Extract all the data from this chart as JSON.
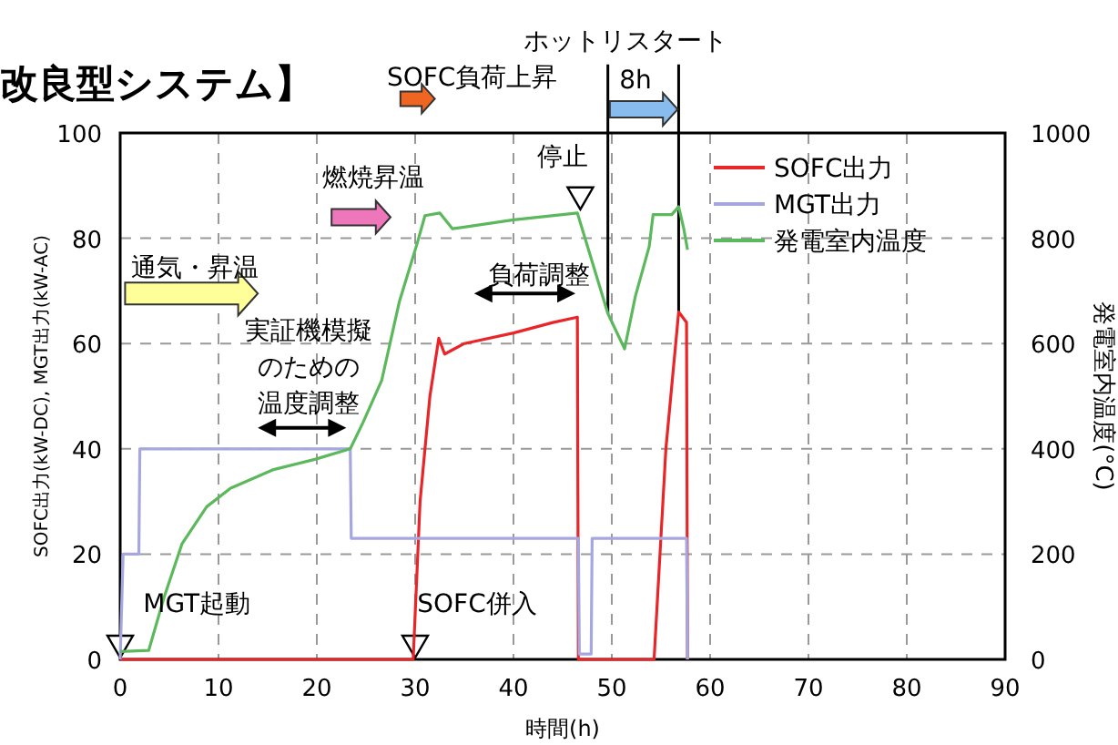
{
  "chart_data": {
    "type": "line",
    "title": "改良型システム】",
    "xlabel": "時間(h)",
    "ylabel": "SOFC出力(kW-DC), MGT出力(kW-AC)",
    "y2label": "発電室内温度(°C)",
    "xlim": [
      0,
      90
    ],
    "xticks": [
      0,
      10,
      20,
      30,
      40,
      50,
      60,
      70,
      80,
      90
    ],
    "ylim": [
      0,
      100
    ],
    "yticks": [
      0,
      20,
      40,
      60,
      80,
      100
    ],
    "y2lim": [
      0,
      1000
    ],
    "y2ticks": [
      0,
      200,
      400,
      600,
      800,
      1000
    ],
    "grid": true,
    "legend": "top right",
    "series": [
      {
        "name": "SOFC出力",
        "color": "#e8262a",
        "x": [
          0,
          29.8,
          30.5,
          31.5,
          32.4,
          33,
          35,
          40,
          44,
          46.5,
          46.6,
          54.3,
          55.5,
          56.8,
          57.6,
          57.7
        ],
        "values": [
          0,
          0,
          30,
          50,
          61,
          58,
          60,
          62,
          64,
          65,
          0,
          0,
          40,
          66,
          64,
          0
        ]
      },
      {
        "name": "MGT出力",
        "color": "#a6a6e0",
        "x": [
          0,
          0.3,
          1.9,
          2,
          23.4,
          23.5,
          46.6,
          46.7,
          47.9,
          48,
          57.6,
          57.7
        ],
        "values": [
          0,
          20,
          20,
          40,
          40,
          23,
          23,
          1,
          1,
          23,
          23,
          0
        ]
      },
      {
        "name": "発電室内温度",
        "color": "#5cb85c",
        "axis": "y2",
        "x": [
          0,
          2.9,
          4.5,
          6.3,
          8.8,
          11.2,
          15.5,
          19.8,
          23.4,
          24.7,
          26.6,
          28.4,
          30.2,
          31,
          32.5,
          33.8,
          40,
          46.5,
          49.6,
          51.3,
          52.4,
          53.8,
          54.2,
          56.1,
          56.8,
          57.3,
          57.7
        ],
        "values": [
          15,
          17,
          120,
          220,
          290,
          325,
          360,
          380,
          400,
          450,
          530,
          680,
          790,
          843,
          848,
          818,
          835,
          848,
          657,
          590,
          690,
          784,
          845,
          845,
          860,
          820,
          778
        ]
      }
    ],
    "annotations": [
      "SOFC負荷上昇",
      {
        "text": "ホットリスタート",
        "x": 49.6,
        "y": 65.7
      },
      {
        "text": "8h",
        "x": 56.8,
        "y": 66
      },
      "燃焼昇温",
      "停止",
      "通気・昇温",
      "実証機模擬のための温度調整",
      "負荷調整",
      "MGT起動",
      "SOFC併入"
    ]
  }
}
